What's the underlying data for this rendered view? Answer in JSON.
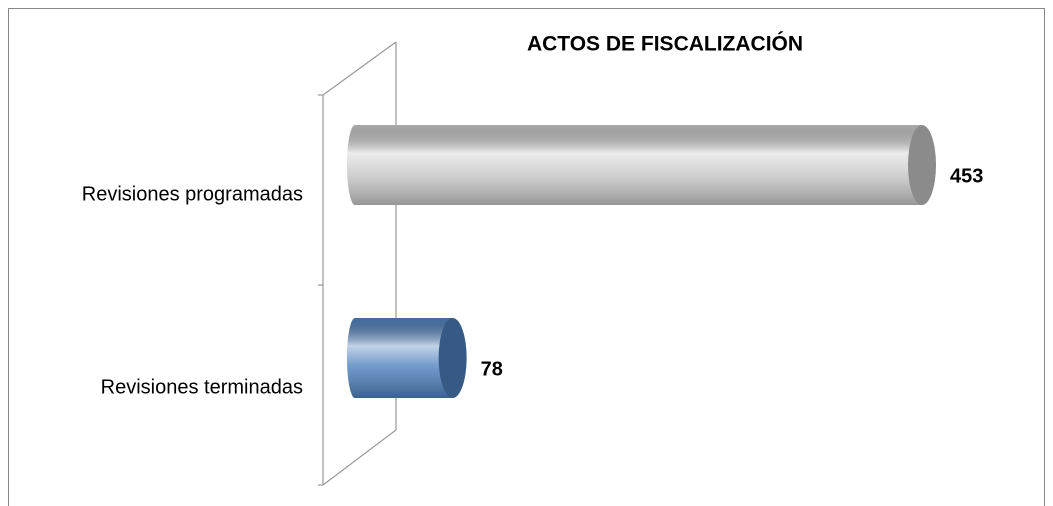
{
  "chart_data": {
    "type": "bar",
    "orientation": "horizontal",
    "title": "ACTOS DE FISCALIZACIÓN",
    "categories": [
      "Revisiones programadas",
      "Revisiones terminadas"
    ],
    "values": [
      453,
      78
    ],
    "colors": [
      "#c8c8c8",
      "#4f81bd"
    ]
  }
}
